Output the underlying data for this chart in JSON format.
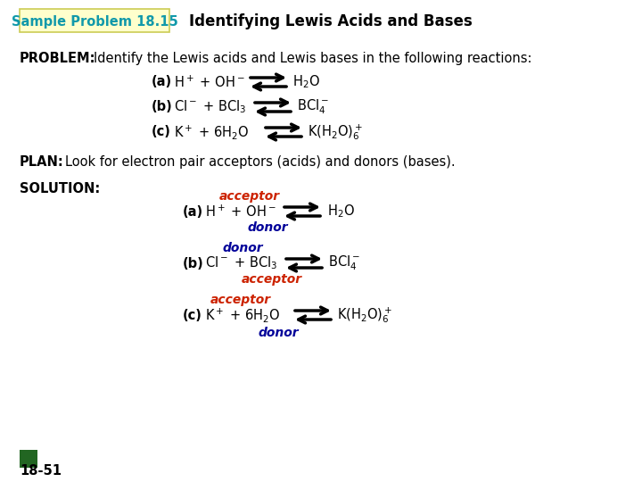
{
  "title_box_text": "Sample Problem 18.15",
  "title_box_color": "#ffffcc",
  "title_box_border": "#cccc55",
  "title_text": "Identifying Lewis Acids and Bases",
  "sample_problem_color": "#1199aa",
  "bg_color": "#ffffff",
  "acceptor_color": "#cc2200",
  "donor_color": "#000099",
  "page_number": "18-51",
  "green_box_color": "#226622"
}
